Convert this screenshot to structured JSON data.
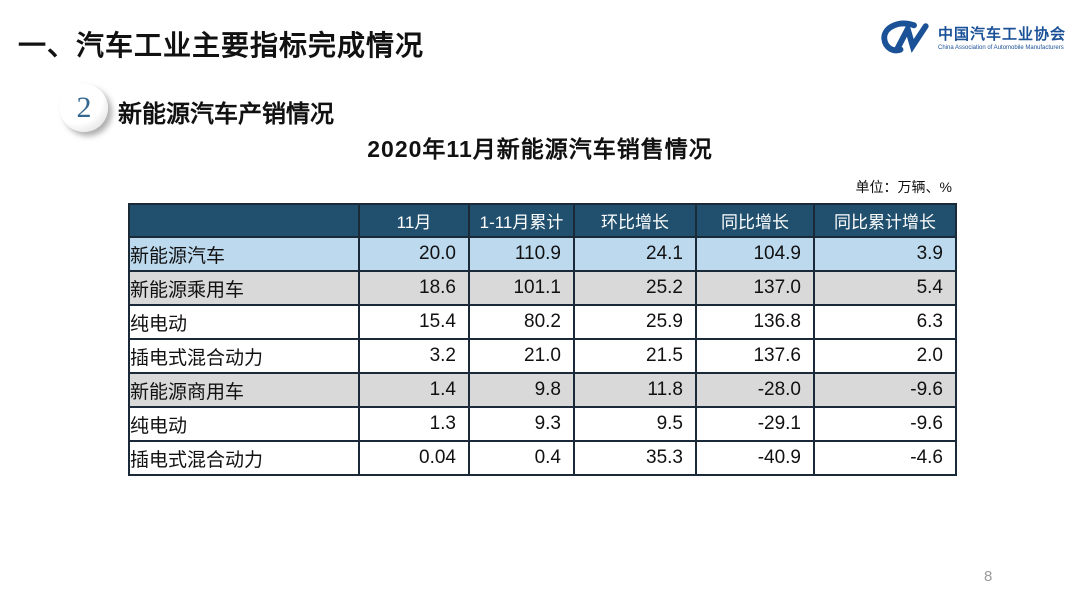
{
  "page": {
    "title": "一、汽车工业主要指标完成情况",
    "page_number": "8"
  },
  "logo": {
    "name_cn": "中国汽车工业协会",
    "name_en": "China Association of Automobile Manufacturers",
    "brand_color": "#1b5197"
  },
  "section": {
    "number": "2",
    "title": "新能源汽车产销情况"
  },
  "table": {
    "title": "2020年11月新能源汽车销售情况",
    "unit_label": "单位：万辆、%",
    "header_bg": "#21506f",
    "border_color": "#1b2a38",
    "row_colors": {
      "highlight_blue": "#bdd9ee",
      "highlight_gray": "#d9d9d9",
      "plain": "#ffffff"
    },
    "columns": [
      "",
      "11月",
      "1-11月累计",
      "环比增长",
      "同比增长",
      "同比累计增长"
    ],
    "rows": [
      {
        "label": "新能源汽车",
        "indent": 0,
        "bg": "#bdd9ee",
        "values": [
          "20.0",
          "110.9",
          "24.1",
          "104.9",
          "3.9"
        ]
      },
      {
        "label": "新能源乘用车",
        "indent": 1,
        "bg": "#d9d9d9",
        "values": [
          "18.6",
          "101.1",
          "25.2",
          "137.0",
          "5.4"
        ]
      },
      {
        "label": "纯电动",
        "indent": 2,
        "bg": "#ffffff",
        "values": [
          "15.4",
          "80.2",
          "25.9",
          "136.8",
          "6.3"
        ]
      },
      {
        "label": "插电式混合动力",
        "indent": 2,
        "bg": "#ffffff",
        "values": [
          "3.2",
          "21.0",
          "21.5",
          "137.6",
          "2.0"
        ]
      },
      {
        "label": "新能源商用车",
        "indent": 1,
        "bg": "#d9d9d9",
        "values": [
          "1.4",
          "9.8",
          "11.8",
          "-28.0",
          "-9.6"
        ]
      },
      {
        "label": "纯电动",
        "indent": 2,
        "bg": "#ffffff",
        "values": [
          "1.3",
          "9.3",
          "9.5",
          "-29.1",
          "-9.6"
        ]
      },
      {
        "label": "插电式混合动力",
        "indent": 2,
        "bg": "#ffffff",
        "values": [
          "0.04",
          "0.4",
          "35.3",
          "-40.9",
          "-4.6"
        ]
      }
    ]
  }
}
